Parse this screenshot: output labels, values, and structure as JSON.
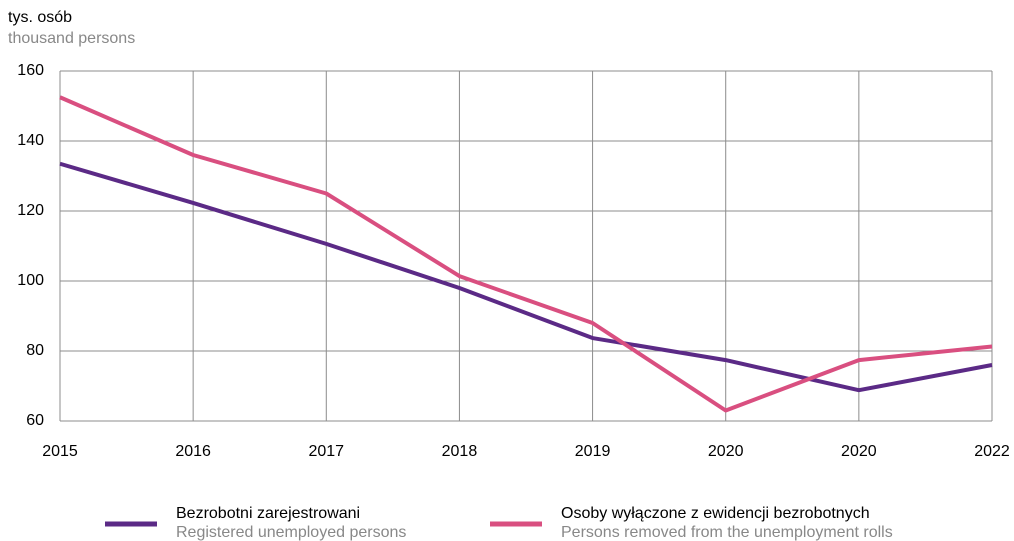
{
  "chart_data": {
    "type": "line",
    "y_label": "tys. osób",
    "y_label_en": "thousand persons",
    "categories": [
      "2015",
      "2016",
      "2017",
      "2018",
      "2019",
      "2020",
      "2020",
      "2022"
    ],
    "series": [
      {
        "name": "Bezrobotni zarejestrowani",
        "name_en": "Registered unemployed persons",
        "color": "#5b2a86",
        "values": [
          133.5,
          122.3,
          110.6,
          98,
          83.7,
          77.4,
          68.8,
          76
        ]
      },
      {
        "name": "Osoby wyłączone z ewidencji bezrobotnych",
        "name_en": "Persons removed from the unemployment rolls",
        "color": "#d94f80",
        "values": [
          152.5,
          136,
          125,
          101.4,
          88,
          63,
          77.4,
          81.3
        ]
      }
    ],
    "ylim": [
      60,
      160
    ],
    "yticks": [
      60,
      80,
      100,
      120,
      140,
      160
    ],
    "grid": true
  }
}
